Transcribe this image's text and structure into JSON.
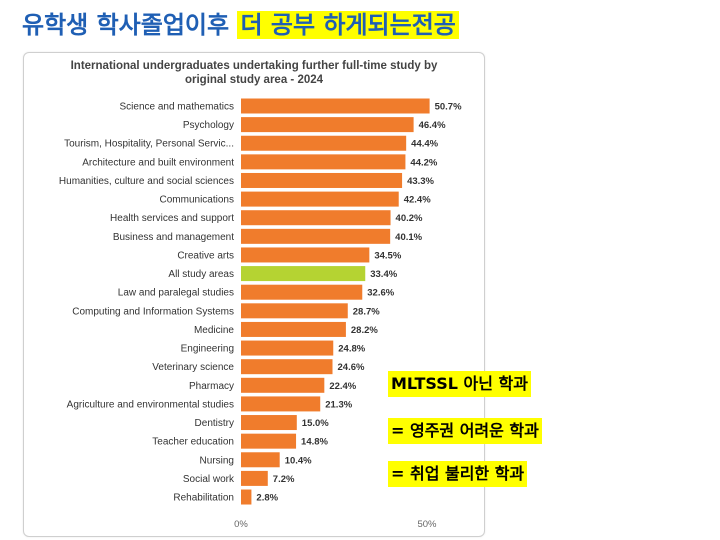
{
  "slide": {
    "title_plain": "유학생 학사졸업이후",
    "title_highlight": "더 공부 하게되는전공"
  },
  "notes": [
    "MLTSSL 아닌 학과",
    "= 영주권 어려운 학과",
    "=  취업 불리한 학과"
  ],
  "colors": {
    "bar": "#f07c2c",
    "highlight_bar": "#b5d332",
    "title_text": "#1f5fb4",
    "note_background": "#ffff00"
  },
  "chart_data": {
    "type": "bar",
    "orientation": "horizontal",
    "title": "International undergraduates undertaking further full-time study by original study area - 2024",
    "title_lines": [
      "International undergraduates undertaking further full-time study by",
      "original study area - 2024"
    ],
    "categories": [
      "Science and mathematics",
      "Psychology",
      "Tourism, Hospitality, Personal Servic...",
      "Architecture and built environment",
      "Humanities, culture and social sciences",
      "Communications",
      "Health services and support",
      "Business and management",
      "Creative arts",
      "All study areas",
      "Law and paralegal studies",
      "Computing and Information Systems",
      "Medicine",
      "Engineering",
      "Veterinary science",
      "Pharmacy",
      "Agriculture and environmental studies",
      "Dentistry",
      "Teacher education",
      "Nursing",
      "Social work",
      "Rehabilitation"
    ],
    "values": [
      50.7,
      46.4,
      44.4,
      44.2,
      43.3,
      42.4,
      40.2,
      40.1,
      34.5,
      33.4,
      32.6,
      28.7,
      28.2,
      24.8,
      24.6,
      22.4,
      21.3,
      15.0,
      14.8,
      10.4,
      7.2,
      2.8
    ],
    "data_labels": [
      "50.7%",
      "46.4%",
      "44.4%",
      "44.2%",
      "43.3%",
      "42.4%",
      "40.2%",
      "40.1%",
      "34.5%",
      "33.4%",
      "32.6%",
      "28.7%",
      "28.2%",
      "24.8%",
      "24.6%",
      "22.4%",
      "21.3%",
      "15.0%",
      "14.8%",
      "10.4%",
      "7.2%",
      "2.8%"
    ],
    "highlight_category": "All study areas",
    "xlim": [
      0,
      50
    ],
    "x_ticks": [
      0,
      50
    ],
    "x_tick_labels": [
      "0%",
      "50%"
    ],
    "grid": false
  }
}
